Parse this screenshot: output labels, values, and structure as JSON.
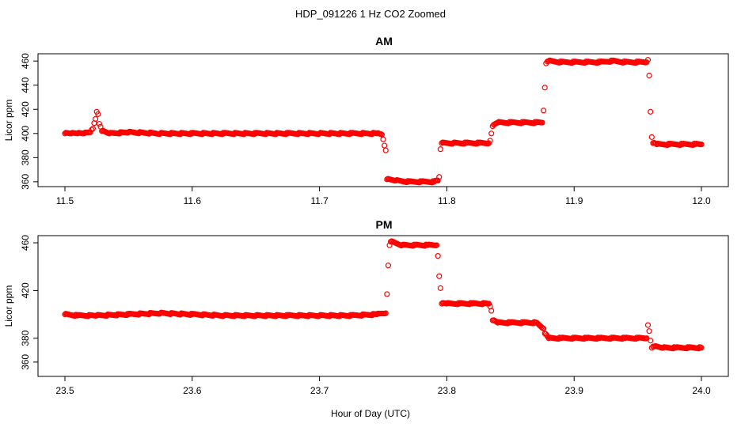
{
  "title": "HDP_091226  1 Hz CO2 Zoomed",
  "xlabel": "Hour of Day (UTC)",
  "colors": {
    "points": "#ff0000",
    "axes": "#000000",
    "background": "#ffffff"
  },
  "chart_data": [
    {
      "type": "scatter",
      "title": "AM",
      "ylabel": "Licor ppm",
      "xlim": [
        11.5,
        12.0
      ],
      "ylim": [
        356,
        466
      ],
      "x_ticks": [
        "11.5",
        "11.6",
        "11.7",
        "11.8",
        "11.9",
        "12.0"
      ],
      "y_ticks": [
        "360",
        "380",
        "400",
        "420",
        "440",
        "460"
      ],
      "grid": false,
      "series": [
        {
          "values": [
            {
              "x": 11.5,
              "y": 400
            },
            {
              "x": 11.505,
              "y": 400
            },
            {
              "x": 11.51,
              "y": 400
            },
            {
              "x": 11.515,
              "y": 400
            },
            {
              "x": 11.52,
              "y": 401
            },
            {
              "x": 11.522,
              "y": 404
            },
            {
              "x": 11.524,
              "y": 412
            },
            {
              "x": 11.525,
              "y": 418
            },
            {
              "x": 11.526,
              "y": 416
            },
            {
              "x": 11.527,
              "y": 408
            },
            {
              "x": 11.529,
              "y": 402
            },
            {
              "x": 11.535,
              "y": 400
            },
            {
              "x": 11.55,
              "y": 401
            },
            {
              "x": 11.575,
              "y": 400
            },
            {
              "x": 11.6,
              "y": 400
            },
            {
              "x": 11.625,
              "y": 400
            },
            {
              "x": 11.65,
              "y": 400
            },
            {
              "x": 11.675,
              "y": 400
            },
            {
              "x": 11.7,
              "y": 400
            },
            {
              "x": 11.725,
              "y": 400
            },
            {
              "x": 11.745,
              "y": 400
            },
            {
              "x": 11.749,
              "y": 399
            },
            {
              "x": 11.751,
              "y": 390
            },
            {
              "x": 11.752,
              "y": 386
            },
            {
              "x": 11.753,
              "y": 362
            },
            {
              "x": 11.76,
              "y": 361
            },
            {
              "x": 11.77,
              "y": 360
            },
            {
              "x": 11.78,
              "y": 360
            },
            {
              "x": 11.79,
              "y": 360
            },
            {
              "x": 11.793,
              "y": 361
            },
            {
              "x": 11.794,
              "y": 364
            },
            {
              "x": 11.795,
              "y": 387
            },
            {
              "x": 11.796,
              "y": 392
            },
            {
              "x": 11.805,
              "y": 392
            },
            {
              "x": 11.815,
              "y": 392
            },
            {
              "x": 11.825,
              "y": 392
            },
            {
              "x": 11.833,
              "y": 392
            },
            {
              "x": 11.834,
              "y": 394
            },
            {
              "x": 11.835,
              "y": 400
            },
            {
              "x": 11.836,
              "y": 406
            },
            {
              "x": 11.84,
              "y": 409
            },
            {
              "x": 11.85,
              "y": 409
            },
            {
              "x": 11.86,
              "y": 409
            },
            {
              "x": 11.87,
              "y": 409
            },
            {
              "x": 11.875,
              "y": 409
            },
            {
              "x": 11.876,
              "y": 419
            },
            {
              "x": 11.877,
              "y": 438
            },
            {
              "x": 11.878,
              "y": 458
            },
            {
              "x": 11.88,
              "y": 460
            },
            {
              "x": 11.89,
              "y": 459
            },
            {
              "x": 11.9,
              "y": 459
            },
            {
              "x": 11.91,
              "y": 459
            },
            {
              "x": 11.92,
              "y": 459
            },
            {
              "x": 11.93,
              "y": 460
            },
            {
              "x": 11.94,
              "y": 459
            },
            {
              "x": 11.95,
              "y": 459
            },
            {
              "x": 11.957,
              "y": 459
            },
            {
              "x": 11.958,
              "y": 461
            },
            {
              "x": 11.959,
              "y": 448
            },
            {
              "x": 11.96,
              "y": 418
            },
            {
              "x": 11.961,
              "y": 397
            },
            {
              "x": 11.962,
              "y": 392
            },
            {
              "x": 11.965,
              "y": 391
            },
            {
              "x": 11.975,
              "y": 391
            },
            {
              "x": 11.985,
              "y": 391
            },
            {
              "x": 11.995,
              "y": 391
            },
            {
              "x": 12.0,
              "y": 391
            }
          ]
        }
      ]
    },
    {
      "type": "scatter",
      "title": "PM",
      "ylabel": "Licor ppm",
      "xlim": [
        23.5,
        24.0
      ],
      "ylim": [
        348,
        466
      ],
      "x_ticks": [
        "23.5",
        "23.6",
        "23.7",
        "23.8",
        "23.9",
        "24.0"
      ],
      "y_ticks": [
        "360",
        "380",
        "420",
        "460"
      ],
      "grid": false,
      "series": [
        {
          "values": [
            {
              "x": 23.5,
              "y": 400
            },
            {
              "x": 23.51,
              "y": 399
            },
            {
              "x": 23.525,
              "y": 399
            },
            {
              "x": 23.55,
              "y": 400
            },
            {
              "x": 23.575,
              "y": 401
            },
            {
              "x": 23.6,
              "y": 400
            },
            {
              "x": 23.625,
              "y": 399
            },
            {
              "x": 23.65,
              "y": 399
            },
            {
              "x": 23.675,
              "y": 399
            },
            {
              "x": 23.7,
              "y": 399
            },
            {
              "x": 23.725,
              "y": 399
            },
            {
              "x": 23.745,
              "y": 400
            },
            {
              "x": 23.752,
              "y": 401
            },
            {
              "x": 23.753,
              "y": 417
            },
            {
              "x": 23.754,
              "y": 441
            },
            {
              "x": 23.755,
              "y": 458
            },
            {
              "x": 23.756,
              "y": 461
            },
            {
              "x": 23.765,
              "y": 458
            },
            {
              "x": 23.775,
              "y": 458
            },
            {
              "x": 23.785,
              "y": 458
            },
            {
              "x": 23.792,
              "y": 458
            },
            {
              "x": 23.793,
              "y": 449
            },
            {
              "x": 23.794,
              "y": 432
            },
            {
              "x": 23.795,
              "y": 422
            },
            {
              "x": 23.796,
              "y": 409
            },
            {
              "x": 23.8,
              "y": 409
            },
            {
              "x": 23.81,
              "y": 409
            },
            {
              "x": 23.82,
              "y": 409
            },
            {
              "x": 23.833,
              "y": 409
            },
            {
              "x": 23.835,
              "y": 403
            },
            {
              "x": 23.836,
              "y": 395
            },
            {
              "x": 23.84,
              "y": 393
            },
            {
              "x": 23.85,
              "y": 393
            },
            {
              "x": 23.86,
              "y": 393
            },
            {
              "x": 23.87,
              "y": 393
            },
            {
              "x": 23.876,
              "y": 388
            },
            {
              "x": 23.877,
              "y": 384
            },
            {
              "x": 23.88,
              "y": 380
            },
            {
              "x": 23.89,
              "y": 380
            },
            {
              "x": 23.9,
              "y": 380
            },
            {
              "x": 23.91,
              "y": 380
            },
            {
              "x": 23.92,
              "y": 380
            },
            {
              "x": 23.93,
              "y": 380
            },
            {
              "x": 23.94,
              "y": 380
            },
            {
              "x": 23.95,
              "y": 380
            },
            {
              "x": 23.957,
              "y": 380
            },
            {
              "x": 23.958,
              "y": 391
            },
            {
              "x": 23.959,
              "y": 386
            },
            {
              "x": 23.96,
              "y": 378
            },
            {
              "x": 23.961,
              "y": 372
            },
            {
              "x": 23.963,
              "y": 373
            },
            {
              "x": 23.97,
              "y": 372
            },
            {
              "x": 23.98,
              "y": 372
            },
            {
              "x": 23.99,
              "y": 372
            },
            {
              "x": 24.0,
              "y": 372
            }
          ]
        }
      ]
    }
  ]
}
